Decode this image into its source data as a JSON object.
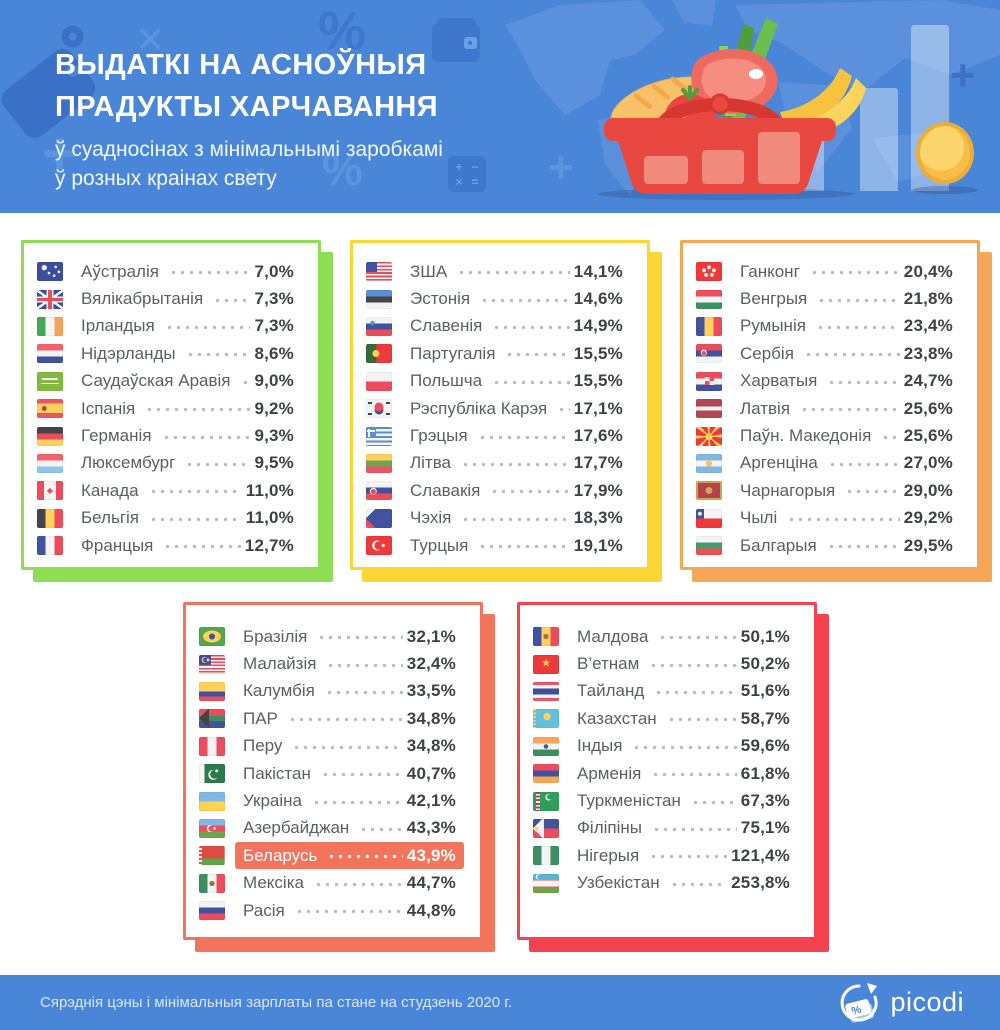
{
  "header": {
    "title_line1": "ВЫДАТКІ НА АСНОЎНЫЯ",
    "title_line2": "ПРАДУКТЫ ХАРЧАВАННЯ",
    "subtitle_line1": "ў суадносінах з мінімальнымі заробкамі",
    "subtitle_line2": "ў розных краінах свету"
  },
  "footer": {
    "note": "Сярэднія цэны і мінімальныя зарплаты па стане на студзень 2020 г.",
    "brand": "picodi"
  },
  "colors": {
    "header_bg": "#4a86d8",
    "accent_green": "#8ddd55",
    "accent_yellow": "#fcd733",
    "accent_orange": "#f5a656",
    "accent_coral": "#f3745c",
    "accent_red": "#f4434e",
    "highlight_bg": "#f3745c"
  },
  "chart_data": {
    "type": "table",
    "title": "Выдаткі на асноўныя прадукты харчавання ў суадносінах з мінімальнымі заробкамі ў розных краінах свету",
    "unit": "%",
    "groups": [
      {
        "accent": "#8ddd55",
        "rows": [
          {
            "country": "Аўстралія",
            "value": 7.0,
            "label": "7,0%",
            "flag": {
              "css": "radial-gradient(circle at 28% 30%, #f4f4f4 2.4px, transparent 2.9px), radial-gradient(circle at 72% 26%, #f4f4f4 1.1px, transparent 1.6px), radial-gradient(circle at 84% 52%, #f4f4f4 1.1px, transparent 1.6px), radial-gradient(circle at 66% 72%, #f4f4f4 1.1px, transparent 1.6px), radial-gradient(circle at 46% 58%, #f4f4f4 1.1px, transparent 1.6px), #3c4da0"
            }
          },
          {
            "country": "Вялікабрытанія",
            "value": 7.3,
            "label": "7,3%",
            "flag": {
              "css": "linear-gradient(to bottom, transparent 43%, #e8505b 43% 57%, transparent 57%), linear-gradient(to right, transparent 43%, #e8505b 43% 57%, transparent 57%), linear-gradient(to bottom, transparent 35%, #f4f4f4 35% 65%, transparent 65%), linear-gradient(to right, transparent 37%, #f4f4f4 37% 63%, transparent 63%), linear-gradient(35deg, transparent 46%, #f4f4f4 46% 54%, transparent 54%), linear-gradient(-35deg, transparent 46%, #f4f4f4 46% 54%, transparent 54%), #3c4da0"
            }
          },
          {
            "country": "Ірландыя",
            "value": 7.3,
            "label": "7,3%",
            "flag": {
              "css": "linear-gradient(to right, #43a85c 33.4%, #f4f4f4 33.4% 66.7%, #f3a459 66.7%)"
            }
          },
          {
            "country": "Нідэрланды",
            "value": 8.6,
            "label": "8,6%",
            "flag": {
              "css": "linear-gradient(to bottom, #f4626b 33.5%, #f4f4f4 33.5% 66.5%, #41539e 66.5%)"
            }
          },
          {
            "country": "Саудаўская Аравія",
            "value": 9.0,
            "label": "9,0%",
            "flag": {
              "css": "linear-gradient(#fff,#fff) 50% 36%/60% 12% no-repeat, linear-gradient(#fff,#fff) 50% 64%/68% 7% no-repeat, #83b93f"
            }
          },
          {
            "country": "Іспанія",
            "value": 9.2,
            "label": "9,2%",
            "flag": {
              "css": "radial-gradient(circle at 28% 50%, #a54a44 2.2px, transparent 2.7px), linear-gradient(to bottom, #ed5565 25%, #ffd15c 25% 75%, #ed5565 75%)"
            }
          },
          {
            "country": "Германія",
            "value": 9.3,
            "label": "9,3%",
            "flag": {
              "css": "linear-gradient(to bottom, #454449 33.4%, #ed4c5c 33.4% 66.7%, #ffd15c 66.7%)"
            }
          },
          {
            "country": "Люксембург",
            "value": 9.5,
            "label": "9,5%",
            "flag": {
              "css": "linear-gradient(to bottom, #f4626b 33.5%, #f4f4f4 33.5% 66.5%, #8ec5e8 66.5%)"
            }
          },
          {
            "country": "Канада",
            "value": 11.0,
            "label": "11,0%",
            "flag": {
              "css": "linear-gradient(to right, #ed4c5c 26%, #f4f4f4 26% 74%, #ed4c5c 74%)",
              "emblem": {
                "char": "◆",
                "color": "#ed4c5c",
                "size": 8
              }
            }
          },
          {
            "country": "Бельгія",
            "value": 11.0,
            "label": "11,0%",
            "flag": {
              "css": "linear-gradient(to right, #454449 33.4%, #ffd15c 33.4% 66.7%, #ed4c5c 66.7%)"
            }
          },
          {
            "country": "Францыя",
            "value": 12.7,
            "label": "12,7%",
            "flag": {
              "css": "linear-gradient(to right, #41539e 33.4%, #f4f4f4 33.4% 66.7%, #ed4c5c 66.7%)"
            }
          }
        ]
      },
      {
        "accent": "#fcd733",
        "rows": [
          {
            "country": "ЗША",
            "value": 14.1,
            "label": "14,1%",
            "flag": {
              "css": "linear-gradient(#41539e,#41539e) 0 0/44% 53% no-repeat, repeating-linear-gradient(to bottom, #ed4c5c 0 1.7px, #f4f4f4 1.7px 3.4px)"
            }
          },
          {
            "country": "Эстонія",
            "value": 14.6,
            "label": "14,6%",
            "flag": {
              "css": "linear-gradient(to bottom, #5b8fd2 33.4%, #454449 33.4% 66.7%, #f4f4f4 66.7%)"
            }
          },
          {
            "country": "Славенія",
            "value": 14.9,
            "label": "14,9%",
            "flag": {
              "css": "radial-gradient(circle at 25% 32%, #5b8fd2 2px, transparent 2.5px), linear-gradient(to bottom, #f4f4f4 33.4%, #41539e 33.4% 66.7%, #ed4c5c 66.7%)"
            }
          },
          {
            "country": "Партугалія",
            "value": 15.5,
            "label": "15,5%",
            "flag": {
              "css": "radial-gradient(circle at 38% 50%, #ffd15c 3.2px, transparent 3.7px), linear-gradient(to right, #356b3a 40%, #ed3939 40%)"
            }
          },
          {
            "country": "Польшча",
            "value": 15.5,
            "label": "15,5%",
            "flag": {
              "css": "linear-gradient(to bottom, #f4f4f4 50%, #ed4c5c 50%)"
            }
          },
          {
            "country": "Рэспубліка Карэя",
            "value": 17.1,
            "label": "17,1%",
            "flag": {
              "css": "radial-gradient(circle at 50% 42%, #ed4c5c 4.2px, transparent 4.6px), radial-gradient(circle at 50% 58%, #41539e 4.2px, transparent 4.6px), linear-gradient(#454449,#454449) 10% 16%/4px 2px no-repeat, linear-gradient(#454449,#454449) 90% 16%/4px 2px no-repeat, linear-gradient(#454449,#454449) 10% 84%/4px 2px no-repeat, linear-gradient(#454449,#454449) 90% 84%/4px 2px no-repeat, #f4f4f4"
            }
          },
          {
            "country": "Грэцыя",
            "value": 17.6,
            "label": "17,6%",
            "flag": {
              "css": "linear-gradient(#f4f4f4,#f4f4f4) 8% 22%/2px 8px no-repeat, linear-gradient(#f4f4f4,#f4f4f4) 8% 22%/8px 2px no-repeat, linear-gradient(#5b8fd2,#5b8fd2) 0 0/40% 50% no-repeat, repeating-linear-gradient(to bottom, #5b8fd2 0 2.25px, #f4f4f4 2.25px 4.5px)"
            }
          },
          {
            "country": "Літва",
            "value": 17.7,
            "label": "17,7%",
            "flag": {
              "css": "linear-gradient(to bottom, #ffd15c 33.4%, #6fa44a 33.4% 66.7%, #ed5565 66.7%)"
            }
          },
          {
            "country": "Славакія",
            "value": 17.9,
            "label": "17,9%",
            "flag": {
              "css": "radial-gradient(circle at 28% 56%, #ed4c5c 2.4px, transparent 2.9px), radial-gradient(circle at 28% 54%, #f4f4f4 3.2px, transparent 3.7px), linear-gradient(to bottom, #f4f4f4 33.4%, #41539e 33.4% 66.7%, #ed4c5c 66.7%)"
            }
          },
          {
            "country": "Чэхія",
            "value": 18.3,
            "label": "18,3%",
            "flag": {
              "css": "conic-gradient(from 45deg at 0% 50%, #41539e 0 90deg, transparent 90deg), linear-gradient(to bottom, #f4f4f4 50%, #ed4c5c 50%)"
            }
          },
          {
            "country": "Турцыя",
            "value": 19.1,
            "label": "19,1%",
            "flag": {
              "css": "radial-gradient(circle at 66% 50%, #f4f4f4 1.4px, transparent 1.9px), radial-gradient(circle at 49% 50%, #ed3939 4px, transparent 4.4px), radial-gradient(circle at 43% 50%, #f4f4f4 4.8px, transparent 5.2px), #ed3939"
            }
          }
        ]
      },
      {
        "accent": "#f5a656",
        "rows": [
          {
            "country": "Ганконг",
            "value": 20.4,
            "label": "20,4%",
            "flag": {
              "css": "radial-gradient(circle at 50% 28%, #f4f4f4 1.7px, transparent 2.2px), radial-gradient(circle at 31% 44%, #f4f4f4 1.7px, transparent 2.2px), radial-gradient(circle at 39% 68%, #f4f4f4 1.7px, transparent 2.2px), radial-gradient(circle at 61% 68%, #f4f4f4 1.7px, transparent 2.2px), radial-gradient(circle at 69% 44%, #f4f4f4 1.7px, transparent 2.2px), #ed3939"
            }
          },
          {
            "country": "Венгрыя",
            "value": 21.8,
            "label": "21,8%",
            "flag": {
              "css": "linear-gradient(to bottom, #ed4c5c 33.4%, #f4f4f4 33.4% 66.7%, #3d8e63 66.7%)"
            }
          },
          {
            "country": "Румынія",
            "value": 23.4,
            "label": "23,4%",
            "flag": {
              "css": "linear-gradient(to right, #41539e 33.4%, #ffd15c 33.4% 66.7%, #ed4c5c 66.7%)"
            }
          },
          {
            "country": "Сербія",
            "value": 23.8,
            "label": "23,8%",
            "flag": {
              "css": "radial-gradient(circle at 30% 48%, #ed4c5c 2px, transparent 2.5px), radial-gradient(circle at 30% 46%, #f4f4f4 2.8px, transparent 3.3px), linear-gradient(to bottom, #ed4c5c 33.4%, #41539e 33.4% 66.7%, #f4f4f4 66.7%)"
            }
          },
          {
            "country": "Харватыя",
            "value": 24.7,
            "label": "24,7%",
            "flag": {
              "css": "conic-gradient(from 0deg at 50% 50%, #ed4c5c 0 90deg, #f4f4f4 90deg 180deg, #ed4c5c 180deg 270deg, #f4f4f4 270deg) 50% 46%/9px 8px no-repeat, linear-gradient(to bottom, #ed4c5c 33.4%, #f4f4f4 33.4% 66.7%, #41539e 66.7%)"
            }
          },
          {
            "country": "Латвія",
            "value": 25.6,
            "label": "25,6%",
            "flag": {
              "css": "linear-gradient(to bottom, #b04954 40%, #f4f4f4 40% 60%, #b04954 60%)"
            }
          },
          {
            "country": "Паўн. Македонія",
            "value": 25.6,
            "label": "25,6%",
            "flag": {
              "css": "radial-gradient(circle at 50% 50%, #ffd15c 3.4px, transparent 3.9px), conic-gradient(from 10deg at 50% 50%, #ed3939 0 25deg, #ffd15c 25deg 40deg, #ed3939 40deg 70deg, #ffd15c 70deg 85deg, #ed3939 85deg 115deg, #ffd15c 115deg 130deg, #ed3939 130deg 160deg, #ffd15c 160deg 175deg, #ed3939 175deg 205deg, #ffd15c 205deg 220deg, #ed3939 220deg 250deg, #ffd15c 250deg 265deg, #ed3939 265deg 295deg, #ffd15c 295deg 310deg, #ed3939 310deg 340deg, #ffd15c 340deg 355deg, #ed3939 355deg)"
            }
          },
          {
            "country": "Аргенціна",
            "value": 27.0,
            "label": "27,0%",
            "flag": {
              "css": "radial-gradient(circle at 50% 50%, #ffc14d 2.8px, transparent 3.3px), linear-gradient(to bottom, #82b6e4 33.4%, #f4f4f4 33.4% 66.7%, #82b6e4 66.7%)"
            }
          },
          {
            "country": "Чарнагорыя",
            "value": 29.0,
            "label": "29,0%",
            "flag": {
              "css": "radial-gradient(circle at 50% 50%, #d0a650 3.2px, transparent 3.7px), linear-gradient(#d0a650,#d0a650) 0 0/100% 2px no-repeat, linear-gradient(#d0a650,#d0a650) 0 100%/100% 2px no-repeat, linear-gradient(#d0a650,#d0a650) 0 0/2px 100% no-repeat, linear-gradient(#d0a650,#d0a650) 100% 0/2px 100% no-repeat, #b6424a"
            }
          },
          {
            "country": "Чылі",
            "value": 29.2,
            "label": "29,2%",
            "flag": {
              "css": "radial-gradient(circle at 15% 25%, #f4f4f4 1.7px, transparent 2.2px), linear-gradient(#41539e,#41539e) 0 0/32% 50% no-repeat, linear-gradient(to bottom, #f4f4f4 50%, #ed3939 50%)"
            }
          },
          {
            "country": "Балгарыя",
            "value": 29.5,
            "label": "29,5%",
            "flag": {
              "css": "linear-gradient(to bottom, #f4f4f4 33.4%, #459b6e 33.4% 66.7%, #ed5050 66.7%)"
            }
          }
        ]
      },
      {
        "accent": "#f3745c",
        "rows": [
          {
            "country": "Бразілія",
            "value": 32.1,
            "label": "32,1%",
            "flag": {
              "css": "radial-gradient(circle at 50% 50%, #41539e 2.8px, transparent 3.2px), radial-gradient(9px 6px at 50% 50%, #ffd15c 97%, transparent 100%), #55a54a"
            }
          },
          {
            "country": "Малайзія",
            "value": 32.4,
            "label": "32,4%",
            "flag": {
              "css": "radial-gradient(circle at 35% 26%, #ffd15c 1.3px, transparent 1.7px), radial-gradient(circle at 25% 26%, #3c4da0 2.2px, transparent 2.6px), radial-gradient(circle at 22% 26%, #ffd15c 2.8px, transparent 3.2px), linear-gradient(#3c4da0,#3c4da0) 0 0/46% 52% no-repeat, repeating-linear-gradient(to bottom, #ed4c5c 0 1.6px, #f4f4f4 1.6px 3.2px)"
            }
          },
          {
            "country": "Калумбія",
            "value": 33.5,
            "label": "33,5%",
            "flag": {
              "css": "linear-gradient(to bottom, #ffd15c 50%, #41539e 50% 75%, #ed4c5c 75%)"
            }
          },
          {
            "country": "ПАР",
            "value": 34.8,
            "label": "34,8%",
            "flag": {
              "css": "conic-gradient(from 45deg at 0% 50%, #454449 0 90deg, transparent 90deg) 0 0/40% 100% no-repeat, linear-gradient(to bottom, transparent 36%, #3d8e63 36% 64%, transparent 64%), linear-gradient(to bottom, #ed4c5c 50%, #41539e 50%)"
            }
          },
          {
            "country": "Перу",
            "value": 34.8,
            "label": "34,8%",
            "flag": {
              "css": "linear-gradient(to right, #ed4c5c 33.4%, #f4f4f4 33.4% 66.7%, #ed4c5c 66.7%)"
            }
          },
          {
            "country": "Пакістан",
            "value": 40.7,
            "label": "40,7%",
            "flag": {
              "css": "radial-gradient(circle at 68% 36%, #f4f4f4 1.3px, transparent 1.7px), radial-gradient(circle at 60% 54%, #2a7a4d 4.2px, transparent 4.6px), radial-gradient(circle at 55% 57%, #f4f4f4 4.8px, transparent 5.2px), linear-gradient(to right, #f4f4f4 22%, #2a7a4d 22%)"
            }
          },
          {
            "country": "Украіна",
            "value": 42.1,
            "label": "42,1%",
            "flag": {
              "css": "linear-gradient(to bottom, #7fb8e5 50%, #ffd34d 50%)"
            }
          },
          {
            "country": "Азербайджан",
            "value": 43.3,
            "label": "43,3%",
            "flag": {
              "css": "radial-gradient(circle at 60% 50%, #f4f4f4 1.2px, transparent 1.6px), radial-gradient(circle at 47% 50%, #ed4c5c 2.6px, transparent 3px), radial-gradient(circle at 43% 50%, #f4f4f4 3.2px, transparent 3.6px), linear-gradient(to bottom, #7fb8e5 33.4%, #ed4c5c 33.4% 66.7%, #6fa44a 66.7%)"
            }
          },
          {
            "country": "Беларусь",
            "value": 43.9,
            "label": "43,9%",
            "highlight": true,
            "flag": {
              "css": "repeating-linear-gradient(to bottom, #ed4c5c 0 2px, #f4f4f4 2px 4px) 0 0/13% 100% no-repeat, linear-gradient(to bottom, #e04a44 66%, #5fa54b 66%) 100% 0/87% 100% no-repeat, #f4f4f4"
            }
          },
          {
            "country": "Мексіка",
            "value": 44.7,
            "label": "44,7%",
            "flag": {
              "css": "radial-gradient(circle at 50% 50%, #9c7539 2.4px, transparent 2.9px), linear-gradient(to right, #3d8e63 33.4%, #f4f4f4 33.4% 66.7%, #ed4c5c 66.7%)"
            }
          },
          {
            "country": "Расія",
            "value": 44.8,
            "label": "44,8%",
            "flag": {
              "css": "linear-gradient(to bottom, #f4f4f4 33.4%, #41539e 33.4% 66.7%, #ed4c5c 66.7%)"
            }
          }
        ]
      },
      {
        "accent": "#f4434e",
        "rows": [
          {
            "country": "Малдова",
            "value": 50.1,
            "label": "50,1%",
            "flag": {
              "css": "radial-gradient(circle at 50% 50%, #9c7539 2.4px, transparent 2.9px), linear-gradient(to right, #41539e 33.4%, #ffd15c 33.4% 66.7%, #ed4c5c 66.7%)"
            }
          },
          {
            "country": "В’етнам",
            "value": 50.2,
            "label": "50,2%",
            "flag": {
              "css": "#ed3939",
              "emblem": {
                "char": "★",
                "color": "#ffd15c",
                "size": 11
              }
            }
          },
          {
            "country": "Тайланд",
            "value": 51.6,
            "label": "51,6%",
            "flag": {
              "css": "linear-gradient(to bottom, #ed5565 16.7%, #f4f4f4 16.7% 33.4%, #3c4da0 33.4% 66.7%, #f4f4f4 66.7% 83.4%, #ed5565 83.4%)"
            }
          },
          {
            "country": "Казахстан",
            "value": 58.7,
            "label": "58,7%",
            "flag": {
              "css": "radial-gradient(circle at 54% 40%, #ffd15c 3.4px, transparent 3.9px), repeating-linear-gradient(to bottom, #ffd15c 0 1.8px, #63c0dd 1.8px 3.6px) 0 0/11% 100% no-repeat, #63c0dd"
            }
          },
          {
            "country": "Індыя",
            "value": 59.6,
            "label": "59,6%",
            "flag": {
              "css": "radial-gradient(circle at 50% 50%, #41539e 2px, transparent 2.5px), linear-gradient(to bottom, #f9a557 33.4%, #f4f4f4 33.4% 66.7%, #3d8e63 66.7%)"
            }
          },
          {
            "country": "Арменія",
            "value": 61.8,
            "label": "61,8%",
            "flag": {
              "css": "linear-gradient(to bottom, #ed4c5c 33.4%, #41539e 33.4% 66.7%, #f9a557 66.7%)"
            }
          },
          {
            "country": "Туркменістан",
            "value": 67.3,
            "label": "67,3%",
            "flag": {
              "css": "radial-gradient(circle at 64% 26%, #2f9e5b 2.4px, transparent 2.8px), radial-gradient(circle at 60% 28%, #f4f4f4 3px, transparent 3.4px), repeating-linear-gradient(to bottom, #b6424a 0 2px, #f4f4f4 2px 3.6px) 3px 0/16% 100% no-repeat, #2f9e5b"
            }
          },
          {
            "country": "Філіпіны",
            "value": 75.1,
            "label": "75,1%",
            "flag": {
              "css": "radial-gradient(circle at 13% 50%, #ffd15c 1.8px, transparent 2.3px), conic-gradient(from 45deg at 0% 50%, #f4f4f4 0 90deg, transparent 90deg) 0 0/42% 100% no-repeat, linear-gradient(to bottom, #41539e 50%, #ed4c5c 50%)"
            }
          },
          {
            "country": "Нігерыя",
            "value": 121.4,
            "label": "121,4%",
            "flag": {
              "css": "linear-gradient(to right, #3d8e63 33.4%, #f4f4f4 33.4% 66.7%, #3d8e63 66.7%)"
            }
          },
          {
            "country": "Узбекістан",
            "value": 253.8,
            "label": "253,8%",
            "flag": {
              "css": "radial-gradient(circle at 24% 16%, #55b7d4 1.9px, transparent 2.3px), radial-gradient(circle at 20% 15%, #f4f4f4 2.3px, transparent 2.7px), linear-gradient(to bottom, #55b7d4 31%, #ed5565 31% 35%, #f4f4f4 35% 65%, #ed5565 65% 69%, #6fa44a 69%)"
            }
          }
        ]
      }
    ]
  }
}
